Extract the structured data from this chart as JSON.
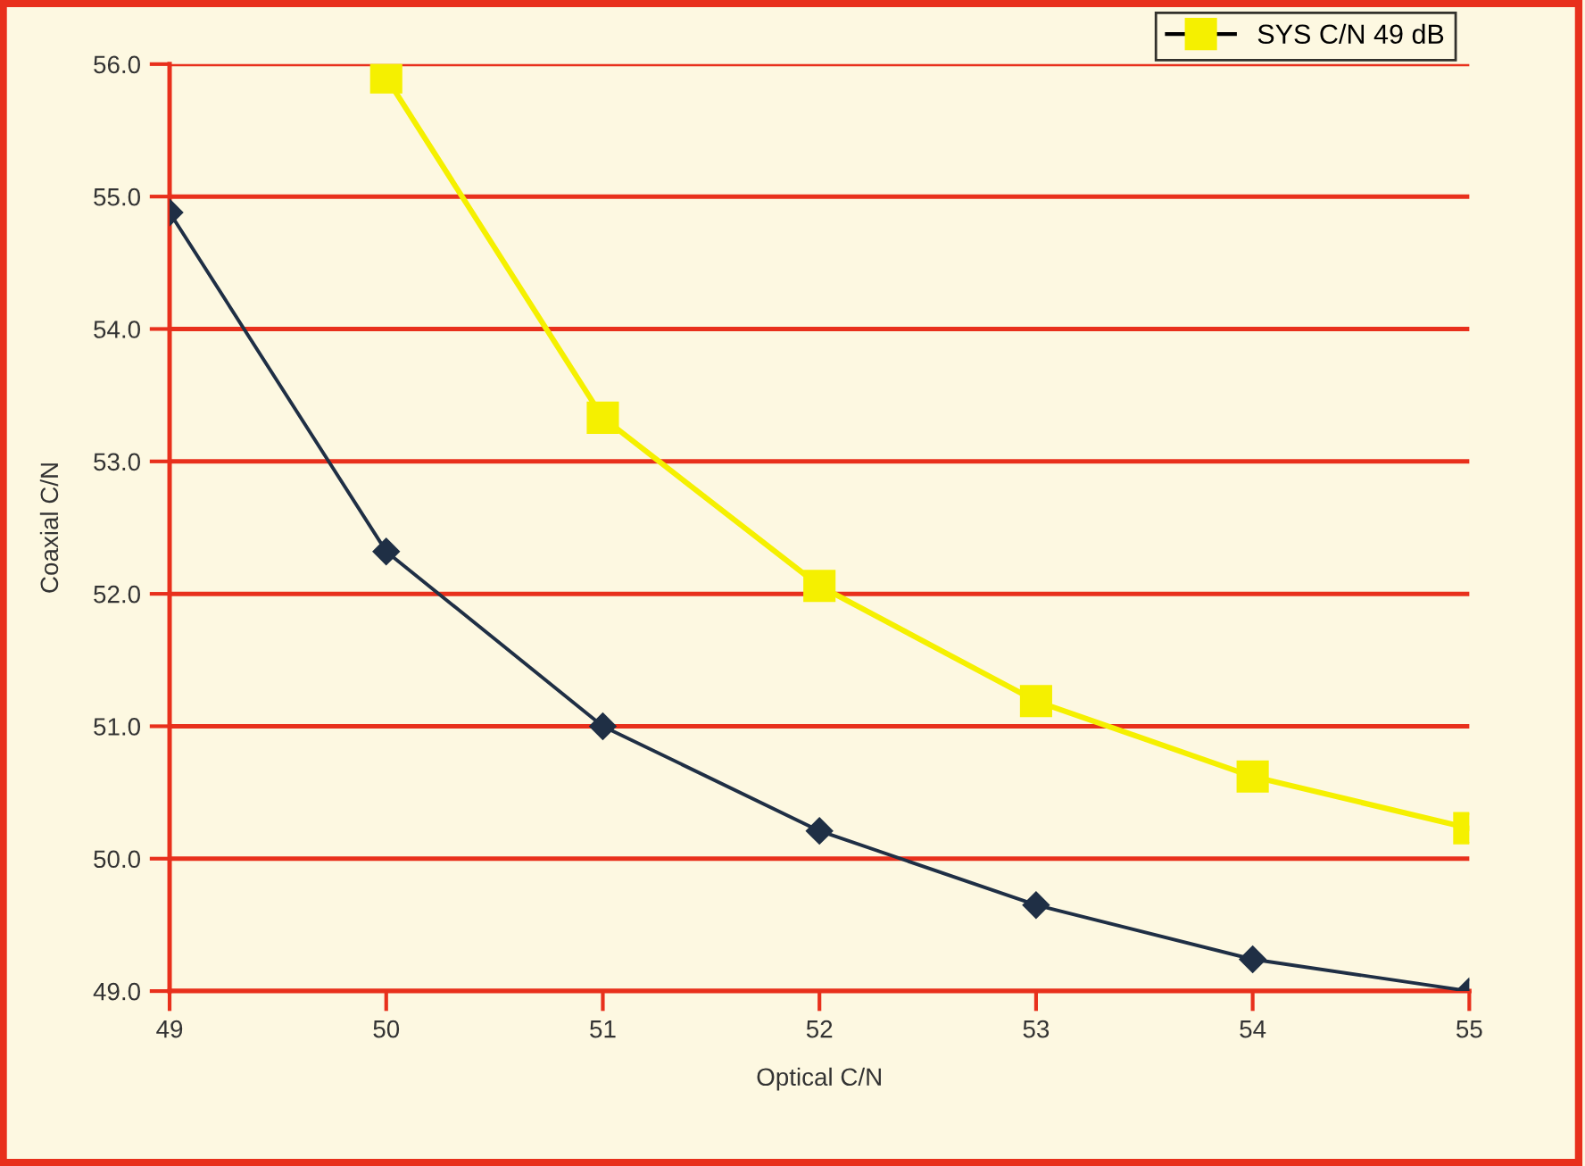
{
  "chart_data": {
    "type": "line",
    "xlabel": "Optical C/N",
    "ylabel": "Coaxial C/N",
    "x": [
      49,
      50,
      51,
      52,
      53,
      54,
      55
    ],
    "series": [
      {
        "color": "#1f2f45",
        "marker": "diamond",
        "values": [
          54.88,
          52.32,
          51.0,
          50.21,
          49.65,
          49.24,
          49.0
        ]
      },
      {
        "name": "SYS C/N 49 dB",
        "color": "#f5f000",
        "marker": "square",
        "values": [
          null,
          55.9,
          53.33,
          52.06,
          51.19,
          50.62,
          50.23
        ]
      }
    ],
    "xlim": [
      49,
      55
    ],
    "xticks": [
      49,
      50,
      51,
      52,
      53,
      54,
      55
    ],
    "ylim": [
      49,
      56
    ],
    "yticks": [
      {
        "value": 49,
        "label": "49.0"
      },
      {
        "value": 50,
        "label": "50.0"
      },
      {
        "value": 51,
        "label": "51.0"
      },
      {
        "value": 52,
        "label": "52.0"
      },
      {
        "value": 53,
        "label": "53.0"
      },
      {
        "value": 54,
        "label": "54.0"
      },
      {
        "value": 55,
        "label": "55.0"
      },
      {
        "value": 56,
        "label": "56.0"
      }
    ],
    "grid": "y",
    "legend": "top right"
  }
}
